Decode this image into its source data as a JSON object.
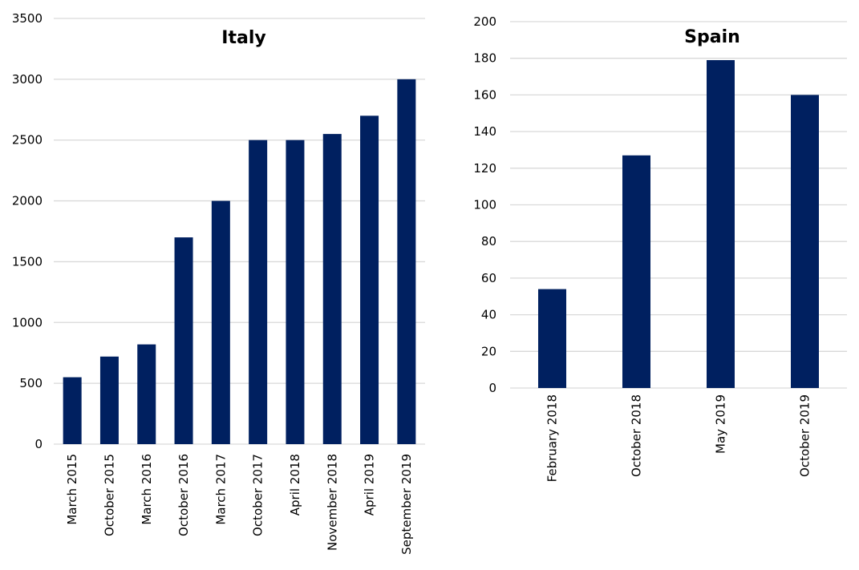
{
  "chart_data": [
    {
      "type": "bar",
      "title": "Italy",
      "categories": [
        "March 2015",
        "October 2015",
        "March 2016",
        "October 2016",
        "March 2017",
        "October 2017",
        "April 2018",
        "November 2018",
        "April 2019",
        "September 2019"
      ],
      "values": [
        550,
        720,
        820,
        1700,
        2000,
        2500,
        2500,
        2550,
        2700,
        3000
      ],
      "ylim": [
        0,
        3500
      ],
      "yticks": [
        "0",
        "500",
        "1000",
        "1500",
        "2000",
        "2500",
        "3000",
        "3500"
      ],
      "grid": true,
      "legend": "none",
      "bar_color": "#002060"
    },
    {
      "type": "bar",
      "title": "Spain",
      "categories": [
        "February 2018",
        "October 2018",
        "May 2019",
        "October 2019"
      ],
      "values": [
        54,
        127,
        179,
        160
      ],
      "ylim": [
        0,
        200
      ],
      "yticks": [
        "0",
        "20",
        "40",
        "60",
        "80",
        "100",
        "120",
        "140",
        "160",
        "180",
        "200"
      ],
      "grid": true,
      "legend": "none",
      "bar_color": "#002060"
    }
  ]
}
